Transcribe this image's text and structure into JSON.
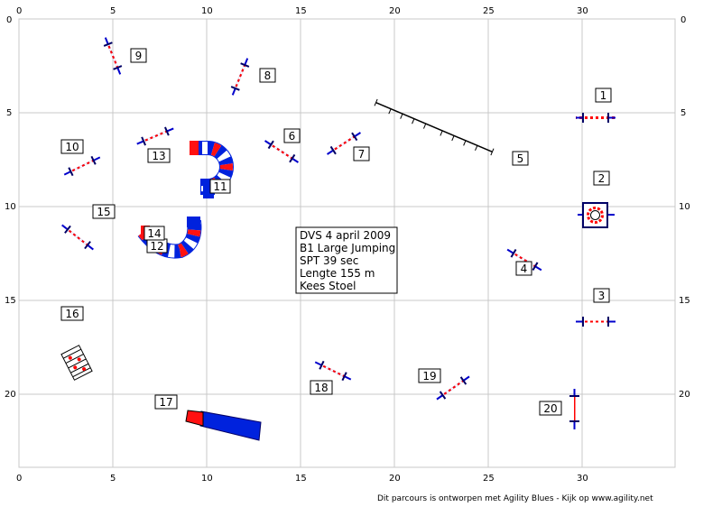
{
  "course": {
    "x_ticks": [
      "0",
      "5",
      "10",
      "15",
      "20",
      "25",
      "30"
    ],
    "y_ticks": [
      "0",
      "5",
      "10",
      "15",
      "20"
    ],
    "info": {
      "line1": "DVS 4 april 2009",
      "line2": "B1 Large Jumping",
      "line3": "SPT 39 sec",
      "line4": "Lengte 155 m",
      "line5": "Kees Stoel"
    },
    "footer": "Dit parcours is ontworpen met Agility Blues - Kijk op www.agility.net",
    "colors": {
      "grid": "#c8c8c8",
      "bar_red": "#ff0000",
      "bar_blue": "#0000cc",
      "tunnel_blue": "#0022dd",
      "tunnel_red": "#ff1111"
    },
    "obstacles": [
      {
        "number": "1",
        "type": "jump"
      },
      {
        "number": "2",
        "type": "tyre"
      },
      {
        "number": "3",
        "type": "jump"
      },
      {
        "number": "4",
        "type": "jump"
      },
      {
        "number": "5",
        "type": "dogwalk"
      },
      {
        "number": "6",
        "type": "jump"
      },
      {
        "number": "7",
        "type": "jump"
      },
      {
        "number": "8",
        "type": "jump"
      },
      {
        "number": "9",
        "type": "jump"
      },
      {
        "number": "10",
        "type": "jump"
      },
      {
        "number": "11",
        "type": "tunnel"
      },
      {
        "number": "12",
        "type": "tunnel"
      },
      {
        "number": "13",
        "type": "jump"
      },
      {
        "number": "14",
        "type": "tunnel"
      },
      {
        "number": "15",
        "type": "jump"
      },
      {
        "number": "16",
        "type": "weave"
      },
      {
        "number": "17",
        "type": "chute"
      },
      {
        "number": "18",
        "type": "jump"
      },
      {
        "number": "19",
        "type": "jump"
      },
      {
        "number": "20",
        "type": "jump"
      }
    ]
  }
}
